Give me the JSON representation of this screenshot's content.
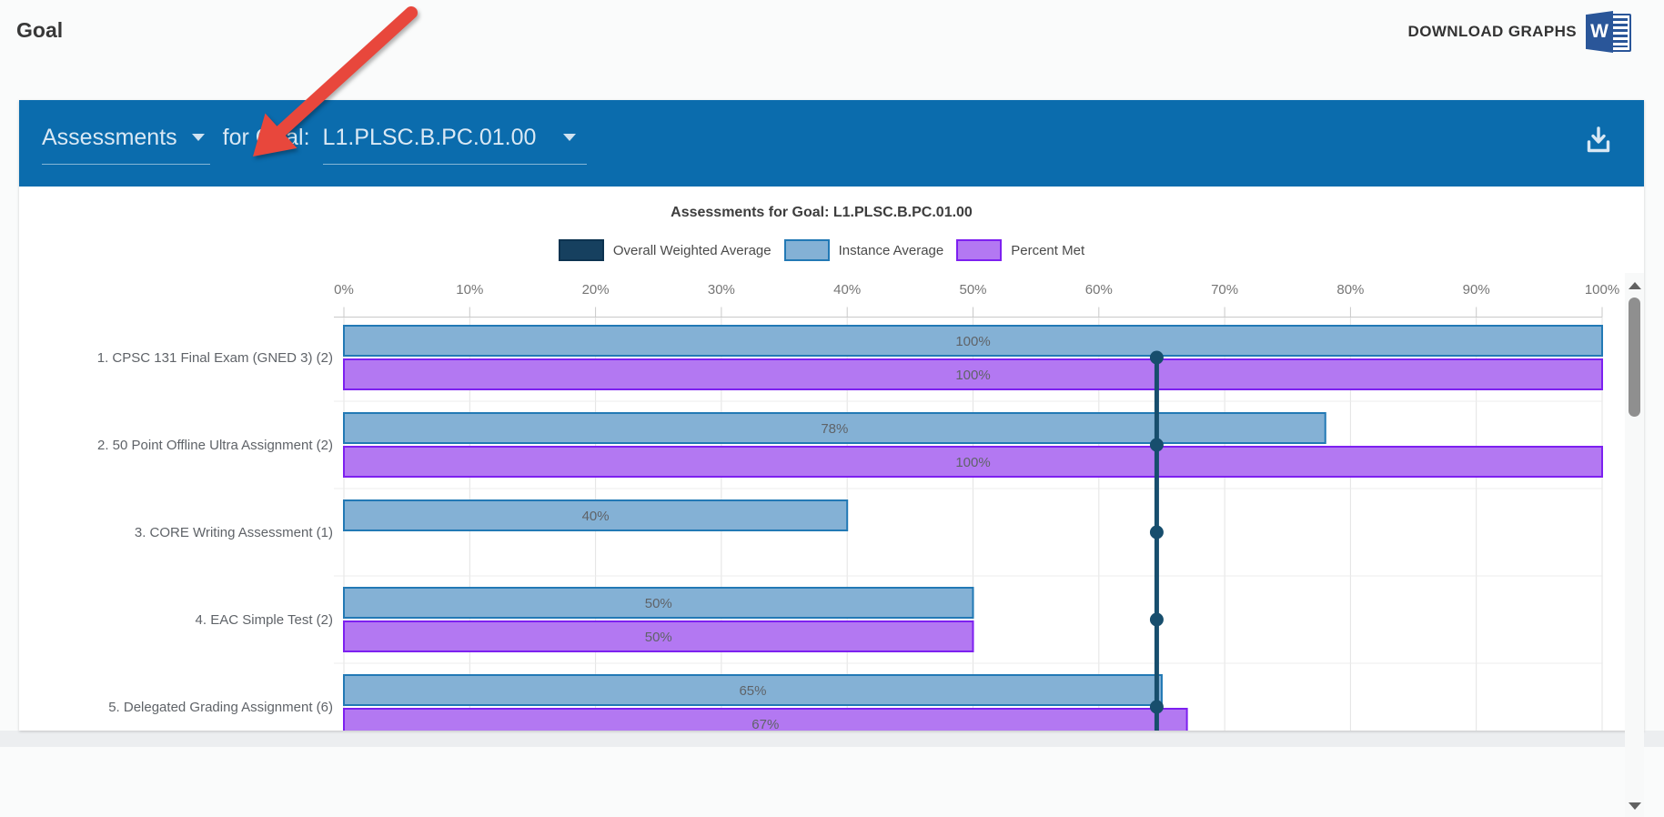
{
  "header": {
    "title": "Goal",
    "download_graphs_label": "DOWNLOAD GRAPHS",
    "word_icon_letter": "W"
  },
  "banner": {
    "assessments_dropdown": "Assessments",
    "for_goal_label": "for Goal:",
    "goal_dropdown": "L1.PLSC.B.PC.01.00"
  },
  "colors": {
    "banner_blue": "#0b6cad",
    "overall_line": "#174e6d",
    "annotation_arrow_red": "#e8473c",
    "word_icon_blue": "#2a5699",
    "gridline": "#e3e3e3",
    "axis_text": "#757575",
    "label_text": "#5f6368"
  },
  "chart_data": {
    "type": "bar",
    "orientation": "horizontal",
    "title": "Assessments for Goal: L1.PLSC.B.PC.01.00",
    "x_axis": {
      "min": 0,
      "max": 100,
      "ticks": [
        "0%",
        "10%",
        "20%",
        "30%",
        "40%",
        "50%",
        "60%",
        "70%",
        "80%",
        "90%",
        "100%"
      ]
    },
    "legend": [
      {
        "label": "Overall Weighted Average",
        "fill": "#16405f",
        "border": "#0d3350"
      },
      {
        "label": "Instance Average",
        "fill": "#84b1d5",
        "border": "#2279b5"
      },
      {
        "label": "Percent Met",
        "fill": "#b378f2",
        "border": "#7d20f0"
      }
    ],
    "categories": [
      "1. CPSC 131 Final Exam (GNED 3) (2)",
      "2. 50 Point Offline Ultra Assignment (2)",
      "3. CORE Writing Assessment (1)",
      "4. EAC Simple Test (2)",
      "5. Delegated Grading Assignment (6)"
    ],
    "series": [
      {
        "name": "Instance Average",
        "values": [
          100,
          78,
          40,
          50,
          65
        ]
      },
      {
        "name": "Percent Met",
        "values": [
          100,
          100,
          null,
          50,
          67
        ]
      }
    ],
    "overall_weighted_average": 64.6,
    "grid": true,
    "legend_position": "top"
  }
}
